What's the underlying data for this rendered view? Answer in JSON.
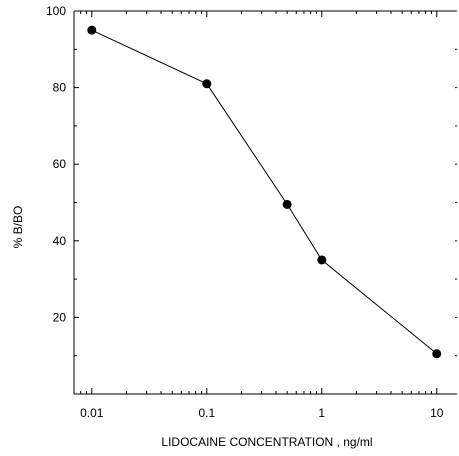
{
  "chart_data": {
    "type": "line",
    "xlabel": "LIDOCAINE CONCENTRATION , ng/ml",
    "ylabel": "% B/BO",
    "xscale": "log",
    "xlim": [
      0.007,
      15
    ],
    "ylim": [
      0,
      100
    ],
    "x_ticks": [
      {
        "value": 0.01,
        "label": "0.01"
      },
      {
        "value": 0.1,
        "label": "0.1"
      },
      {
        "value": 1,
        "label": "1"
      },
      {
        "value": 10,
        "label": "10"
      }
    ],
    "y_ticks": [
      {
        "value": 20,
        "label": "20"
      },
      {
        "value": 40,
        "label": "40"
      },
      {
        "value": 60,
        "label": "60"
      },
      {
        "value": 80,
        "label": "80"
      },
      {
        "value": 100,
        "label": "100"
      }
    ],
    "series": [
      {
        "x": [
          0.01,
          0.1,
          0.5,
          1,
          10
        ],
        "y": [
          95,
          81,
          49.5,
          35,
          10.5
        ]
      }
    ],
    "grid": false,
    "legend": "none",
    "marker": "filled-circle",
    "line_color": "#000000",
    "marker_color": "#000000"
  }
}
